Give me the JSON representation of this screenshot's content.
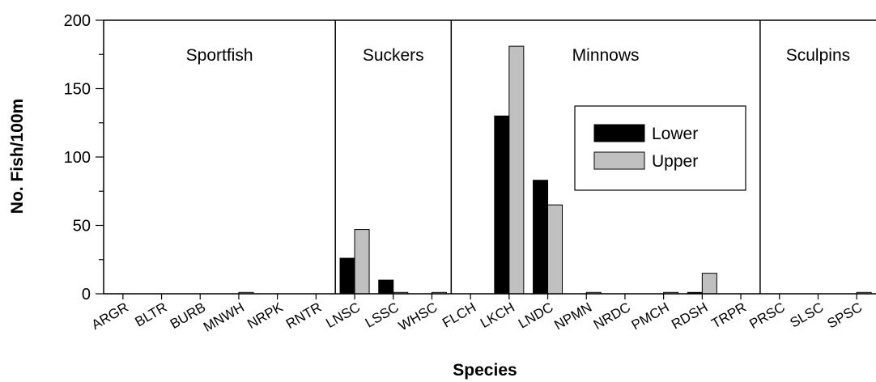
{
  "chart_data": {
    "type": "bar",
    "xlabel": "Species",
    "ylabel": "No. Fish/100m",
    "ylim": [
      0,
      200
    ],
    "yticks": [
      "0",
      "50",
      "100",
      "150",
      "200"
    ],
    "categories": [
      "ARGR",
      "BLTR",
      "BURB",
      "MNWH",
      "NRPK",
      "RNTR",
      "LNSC",
      "LSSC",
      "WHSC",
      "FLCH",
      "LKCH",
      "LNDC",
      "NPMN",
      "NRDC",
      "PMCH",
      "RDSH",
      "TRPR",
      "PRSC",
      "SLSC",
      "SPSC"
    ],
    "groups": [
      {
        "label": "Sportfish",
        "start": 0,
        "end": 5
      },
      {
        "label": "Suckers",
        "start": 6,
        "end": 8
      },
      {
        "label": "Minnows",
        "start": 9,
        "end": 16
      },
      {
        "label": "Sculpins",
        "start": 17,
        "end": 19
      }
    ],
    "series": [
      {
        "name": "Lower",
        "color": "#000000",
        "values": [
          0,
          0,
          0,
          0,
          0,
          0,
          26,
          10,
          0,
          0,
          130,
          83,
          0,
          0,
          0,
          1,
          0,
          0,
          0,
          0
        ]
      },
      {
        "name": "Upper",
        "color": "#c0c0c0",
        "values": [
          0,
          0,
          0,
          1,
          0,
          0,
          47,
          1,
          1,
          0,
          181,
          65,
          1,
          0,
          1,
          15,
          0,
          0,
          0,
          1
        ]
      }
    ],
    "legend": {
      "position": "center-right"
    },
    "grid": false
  }
}
